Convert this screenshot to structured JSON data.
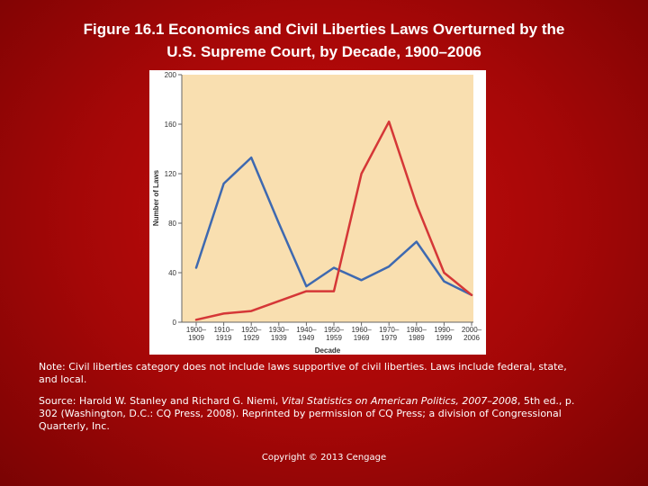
{
  "slide": {
    "title_line1": "Figure 16.1 Economics and Civil Liberties Laws Overturned by the",
    "title_line2": "U.S. Supreme Court, by Decade, 1900–2006",
    "note": "Note: Civil liberties category does not include laws supportive of civil liberties. Laws include federal, state, and local.",
    "source_prefix": "Source: Harold W. Stanley and Richard G. Niemi, ",
    "source_title": "Vital Statistics on American Politics, 2007–2008",
    "source_suffix": ", 5th ed., p. 302 (Washington, D.C.: CQ Press, 2008). Reprinted by permission of CQ Press; a division of Congressional Quarterly, Inc.",
    "copyright": "Copyright © 2013 Cengage"
  },
  "colors": {
    "plot_background": "#f9dfb0",
    "economics_line": "#3e69b0",
    "civil_liberties_line": "#d53737"
  },
  "chart_data": {
    "type": "line",
    "title": "",
    "xlabel": "Decade",
    "ylabel": "Number of Laws",
    "ylim": [
      0,
      200
    ],
    "yticks": [
      0,
      40,
      80,
      120,
      160,
      200
    ],
    "grid": false,
    "categories": [
      [
        "1900–",
        "1909"
      ],
      [
        "1910–",
        "1919"
      ],
      [
        "1920–",
        "1929"
      ],
      [
        "1930–",
        "1939"
      ],
      [
        "1940–",
        "1949"
      ],
      [
        "1950–",
        "1959"
      ],
      [
        "1960–",
        "1969"
      ],
      [
        "1970–",
        "1979"
      ],
      [
        "1980–",
        "1989"
      ],
      [
        "1990–",
        "1999"
      ],
      [
        "2000–",
        "2006"
      ]
    ],
    "series": [
      {
        "key": "economics",
        "color": "#3e69b0",
        "points": [
          [
            0,
            44
          ],
          [
            1,
            112
          ],
          [
            2,
            133
          ],
          [
            3,
            80
          ],
          [
            4,
            29
          ],
          [
            5,
            44
          ],
          [
            6,
            34
          ],
          [
            7,
            45
          ],
          [
            8,
            65
          ],
          [
            9,
            33
          ],
          [
            10,
            22
          ]
        ]
      },
      {
        "key": "civil_liberties",
        "color": "#d53737",
        "points": [
          [
            0,
            2
          ],
          [
            1,
            7
          ],
          [
            2,
            9
          ],
          [
            3,
            17
          ],
          [
            4,
            25
          ],
          [
            5,
            25
          ],
          [
            6,
            120
          ],
          [
            7,
            162
          ],
          [
            8,
            95
          ],
          [
            9,
            40
          ],
          [
            10,
            22
          ]
        ]
      }
    ]
  }
}
